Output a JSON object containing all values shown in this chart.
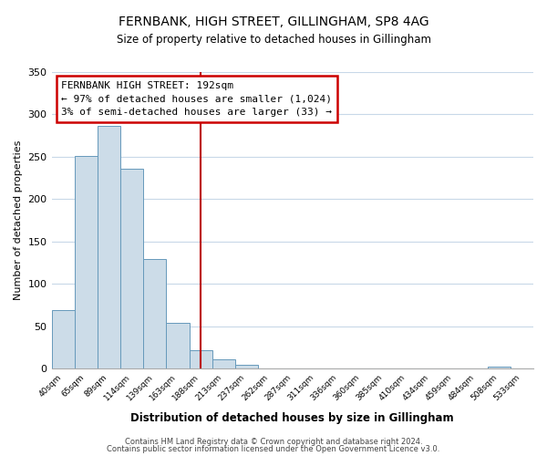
{
  "title": "FERNBANK, HIGH STREET, GILLINGHAM, SP8 4AG",
  "subtitle": "Size of property relative to detached houses in Gillingham",
  "xlabel": "Distribution of detached houses by size in Gillingham",
  "ylabel": "Number of detached properties",
  "bin_labels": [
    "40sqm",
    "65sqm",
    "89sqm",
    "114sqm",
    "139sqm",
    "163sqm",
    "188sqm",
    "213sqm",
    "237sqm",
    "262sqm",
    "287sqm",
    "311sqm",
    "336sqm",
    "360sqm",
    "385sqm",
    "410sqm",
    "434sqm",
    "459sqm",
    "484sqm",
    "508sqm",
    "533sqm"
  ],
  "bar_heights": [
    69,
    251,
    286,
    236,
    129,
    54,
    22,
    11,
    4,
    0,
    0,
    0,
    0,
    0,
    0,
    0,
    0,
    0,
    0,
    2,
    0
  ],
  "bar_color": "#ccdce8",
  "bar_edge_color": "#6699bb",
  "vline_color": "#bb0000",
  "annotation_title": "FERNBANK HIGH STREET: 192sqm",
  "annotation_line1": "← 97% of detached houses are smaller (1,024)",
  "annotation_line2": "3% of semi-detached houses are larger (33) →",
  "annotation_box_color": "#ffffff",
  "annotation_box_edge": "#cc0000",
  "ylim": [
    0,
    350
  ],
  "yticks": [
    0,
    50,
    100,
    150,
    200,
    250,
    300,
    350
  ],
  "footer1": "Contains HM Land Registry data © Crown copyright and database right 2024.",
  "footer2": "Contains public sector information licensed under the Open Government Licence v3.0.",
  "background_color": "#ffffff",
  "grid_color": "#c8d8e8"
}
